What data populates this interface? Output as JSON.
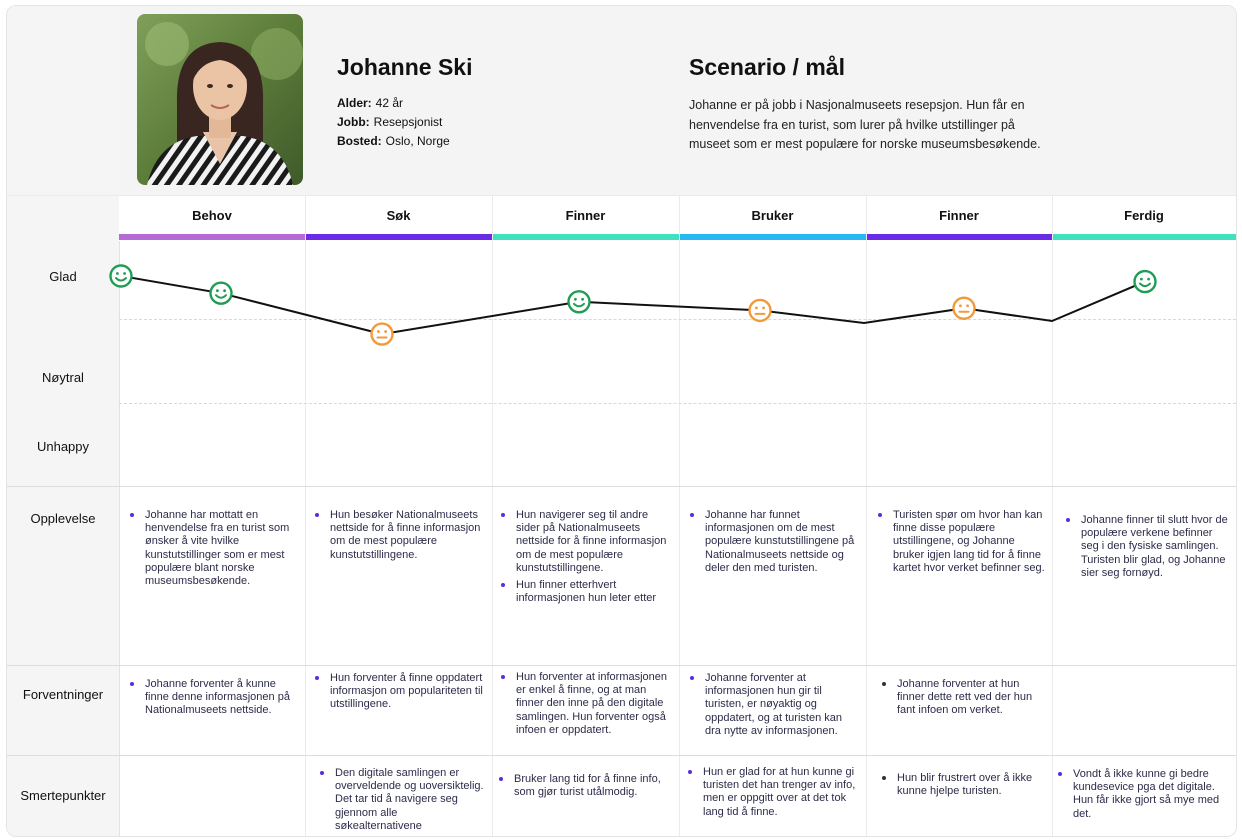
{
  "persona": {
    "name": "Johanne Ski",
    "age_label": "Alder:",
    "age": "42 år",
    "job_label": "Jobb:",
    "job": "Resepsjonist",
    "home_label": "Bosted:",
    "home": "Oslo, Norge"
  },
  "scenario": {
    "title": "Scenario / mål",
    "text": "Johanne er på jobb i Nasjonalmuseets resepsjon. Hun får en henvendelse fra en turist, som lurer på hvilke utstillinger på museet som er mest populære for norske museumsbesøkende."
  },
  "stages": [
    {
      "name": "Behov",
      "color": "#b66ad6"
    },
    {
      "name": "Søk",
      "color": "#6b2ae6"
    },
    {
      "name": "Finner",
      "color": "#43e0c0"
    },
    {
      "name": "Bruker",
      "color": "#27b7f3"
    },
    {
      "name": "Finner",
      "color": "#6b2ae6"
    },
    {
      "name": "Ferdig",
      "color": "#43e0c0"
    }
  ],
  "rows": {
    "glad": "Glad",
    "noytral": "Nøytral",
    "unhappy": "Unhappy",
    "opplevelse": "Opplevelse",
    "forventninger": "Forventninger",
    "smertepunkter": "Smertepunkter"
  },
  "chart_data": {
    "type": "line",
    "levels": [
      "Unhappy",
      "Nøytral",
      "Glad"
    ],
    "points": [
      {
        "stage": "Behov",
        "mood": "happy",
        "value": 1.0
      },
      {
        "stage": "Behov",
        "mood": "happy",
        "value": 0.6
      },
      {
        "stage": "Søk",
        "mood": "neutral",
        "value": -0.35
      },
      {
        "stage": "Finner",
        "mood": "happy",
        "value": 0.4
      },
      {
        "stage": "Bruker",
        "mood": "neutral",
        "value": 0.2
      },
      {
        "stage": "Finner",
        "mood": "neutral",
        "value": 0.25
      },
      {
        "stage": "Ferdig",
        "mood": "happy",
        "value": 0.87
      }
    ],
    "colors": {
      "happy": "#1f9d55",
      "neutral": "#f29a3a"
    }
  },
  "opplevelse": [
    [
      "Johanne har mottatt en henvendelse fra en turist som ønsker å vite hvilke kunstutstillinger som er mest populære blant norske museumsbesøkende."
    ],
    [
      "Hun besøker Nationalmuseets nettside for å finne informasjon om de mest populære kunstutstillingene."
    ],
    [
      "Hun navigerer seg til andre sider på Nationalmuseets nettside for å finne informasjon om de mest populære kunstutstillingene.",
      "Hun finner etterhvert informasjonen hun leter etter"
    ],
    [
      "Johanne har funnet informasjonen om de mest populære kunstutstillingene på Nationalmuseets nettside og deler den med turisten."
    ],
    [
      "Turisten spør om hvor han kan finne disse populære utstillingene, og Johanne bruker igjen lang tid for å finne kartet hvor verket befinner seg."
    ],
    [
      "Johanne finner til slutt hvor de populære verkene befinner seg i den fysiske samlingen. Turisten blir glad, og Johanne sier seg fornøyd."
    ]
  ],
  "forventninger": [
    [
      "Johanne forventer å kunne finne denne informasjonen på Nationalmuseets nettside."
    ],
    [
      "Hun forventer å finne oppdatert informasjon om populariteten til utstillingene."
    ],
    [
      "Hun forventer at informasjonen er enkel å finne, og at man finner den inne på den digitale samlingen. Hun forventer også infoen er oppdatert."
    ],
    [
      "Johanne forventer at informasjonen hun gir til turisten, er nøyaktig og oppdatert, og at turisten kan dra nytte av informasjonen."
    ],
    [
      "Johanne forventer at hun finner dette rett ved der hun fant infoen om verket."
    ],
    []
  ],
  "smertepunkter": [
    [],
    [
      "Den digitale samlingen er overveldende og uoversiktelig. Det tar tid å navigere seg gjennom alle søkealternativene"
    ],
    [
      "Bruker lang tid for å finne info, som gjør turist utålmodig."
    ],
    [
      "Hun er glad for at hun kunne gi turisten det han trenger av info, men er oppgitt over at det tok lang tid å finne."
    ],
    [
      "Hun blir frustrert over å ikke kunne hjelpe turisten."
    ],
    [
      "Vondt å ikke kunne gi bedre kundesevice pga det digitale. Hun får ikke gjort så mye med det."
    ]
  ]
}
